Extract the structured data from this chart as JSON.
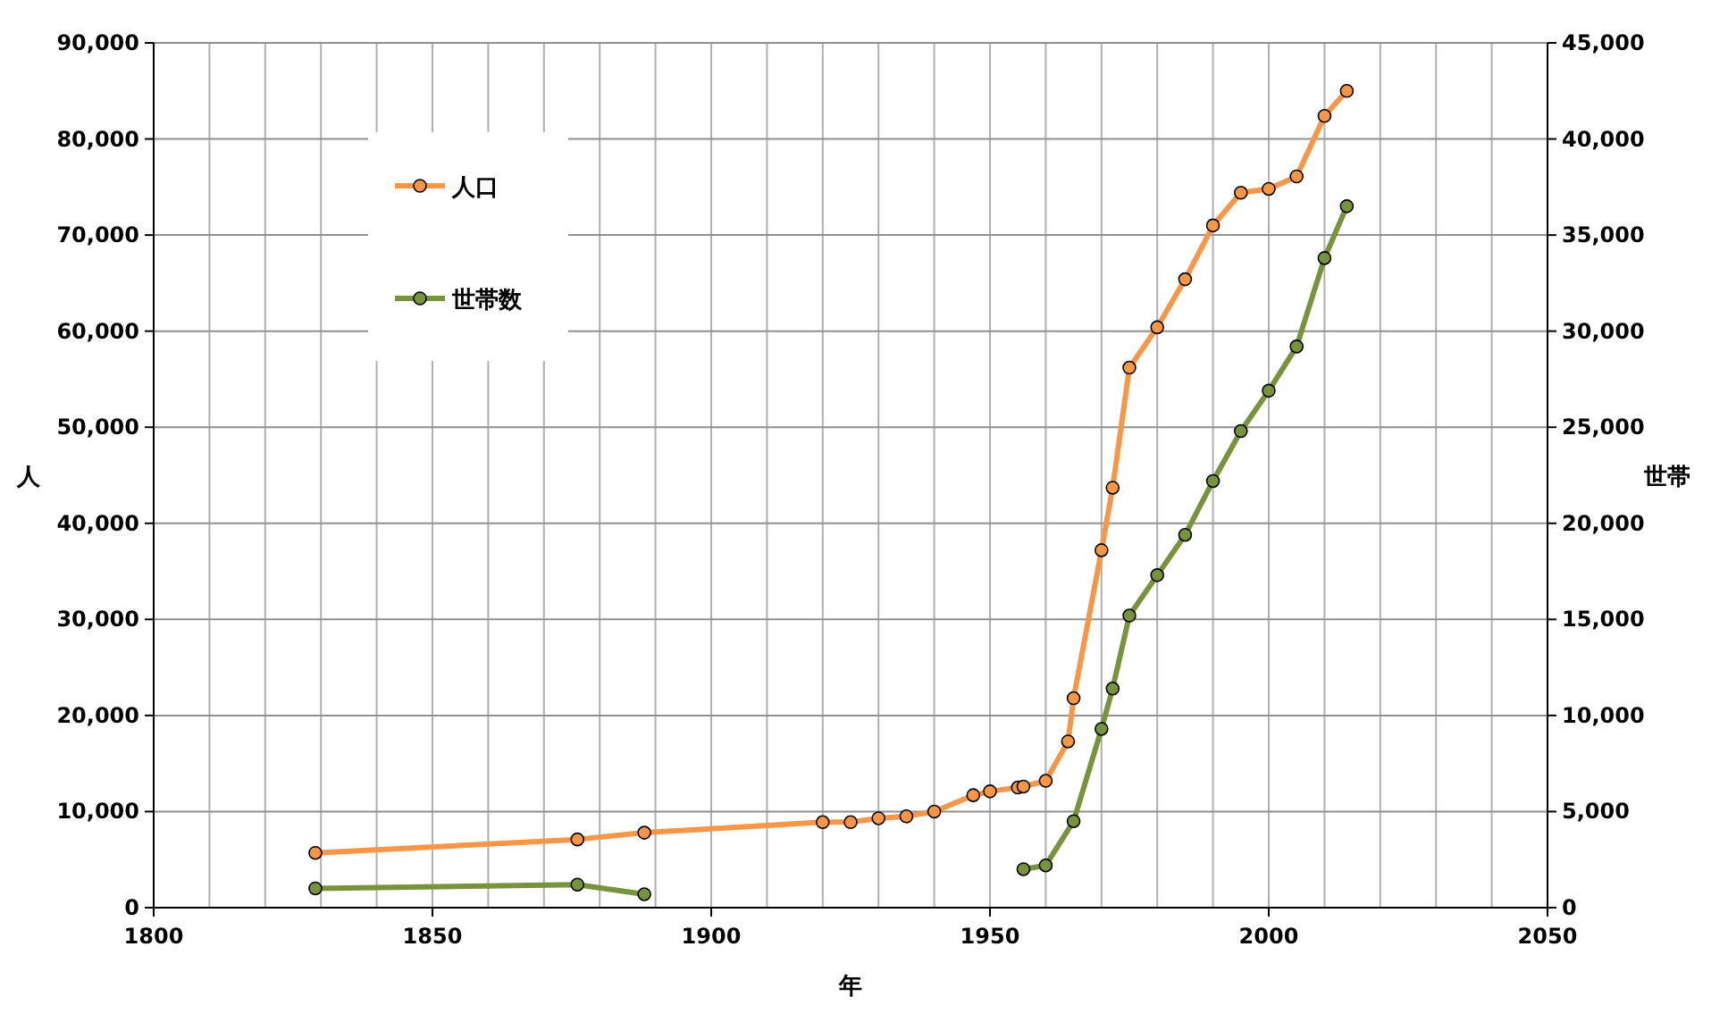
{
  "chart_data": {
    "type": "line",
    "xlabel": "年",
    "ylabel": "人",
    "y2label": "世帯",
    "xlim": [
      1800,
      2050
    ],
    "xticks": [
      1800,
      {
        "value": 1810,
        "label": null
      },
      {
        "value": 1820,
        "label": null
      },
      {
        "value": 1830,
        "label": null
      },
      {
        "value": 1840,
        "label": null
      },
      1850,
      {
        "value": 1860,
        "label": null
      },
      {
        "value": 1870,
        "label": null
      },
      {
        "value": 1880,
        "label": null
      },
      {
        "value": 1890,
        "label": null
      },
      1900,
      {
        "value": 1910,
        "label": null
      },
      {
        "value": 1920,
        "label": null
      },
      {
        "value": 1930,
        "label": null
      },
      {
        "value": 1940,
        "label": null
      },
      1950,
      {
        "value": 1960,
        "label": null
      },
      {
        "value": 1970,
        "label": null
      },
      {
        "value": 1980,
        "label": null
      },
      {
        "value": 1990,
        "label": null
      },
      2000,
      {
        "value": 2010,
        "label": null
      },
      {
        "value": 2020,
        "label": null
      },
      {
        "value": 2030,
        "label": null
      },
      {
        "value": 2040,
        "label": null
      },
      2050
    ],
    "ylim": [
      0,
      90000
    ],
    "yticks": [
      {
        "value": 0,
        "label": "0"
      },
      {
        "value": 10000,
        "label": "10,000"
      },
      {
        "value": 20000,
        "label": "20,000"
      },
      {
        "value": 30000,
        "label": "30,000"
      },
      {
        "value": 40000,
        "label": "40,000"
      },
      {
        "value": 50000,
        "label": "50,000"
      },
      {
        "value": 60000,
        "label": "60,000"
      },
      {
        "value": 70000,
        "label": "70,000"
      },
      {
        "value": 80000,
        "label": "80,000"
      },
      {
        "value": 90000,
        "label": "90,000"
      }
    ],
    "y2lim": [
      0,
      45000
    ],
    "y2ticks": [
      {
        "value": 0,
        "label": "0"
      },
      {
        "value": 5000,
        "label": "5,000"
      },
      {
        "value": 10000,
        "label": "10,000"
      },
      {
        "value": 15000,
        "label": "15,000"
      },
      {
        "value": 20000,
        "label": "20,000"
      },
      {
        "value": 25000,
        "label": "25,000"
      },
      {
        "value": 30000,
        "label": "30,000"
      },
      {
        "value": 35000,
        "label": "35,000"
      },
      {
        "value": 40000,
        "label": "40,000"
      },
      {
        "value": 45000,
        "label": "45,000"
      }
    ],
    "grid": true,
    "legend": "top left",
    "marker": "circle",
    "line_style": "solid",
    "series": [
      {
        "name": "人口",
        "color": "#f79646",
        "x": [
          1829,
          1876,
          1888,
          1920,
          1925,
          1930,
          1935,
          1940,
          1947,
          1950,
          1955,
          1956,
          1960,
          1964,
          1965,
          1970,
          1972,
          1975,
          1980,
          1985,
          1990,
          1995,
          2000,
          2005,
          2010,
          2014
        ],
        "values": [
          5700,
          7100,
          7800,
          8900,
          8900,
          9300,
          9500,
          10000,
          11700,
          12100,
          12500,
          12600,
          13200,
          17300,
          21800,
          37200,
          43700,
          56200,
          60400,
          65400,
          71000,
          74400,
          74800,
          76100,
          82400,
          85000
        ]
      },
      {
        "name": "世帯数",
        "color": "#77933c",
        "axis": "y2",
        "x": [
          1829,
          1876,
          1888,
          1920,
          1956,
          1960,
          1965,
          1970,
          1972,
          1975,
          1980,
          1985,
          1990,
          1995,
          2000,
          2005,
          2010,
          2014
        ],
        "values": [
          1000,
          1200,
          700,
          null,
          2000,
          2200,
          4500,
          9300,
          11400,
          15200,
          17300,
          19400,
          22200,
          24800,
          26900,
          29200,
          33800,
          36500
        ]
      }
    ]
  }
}
